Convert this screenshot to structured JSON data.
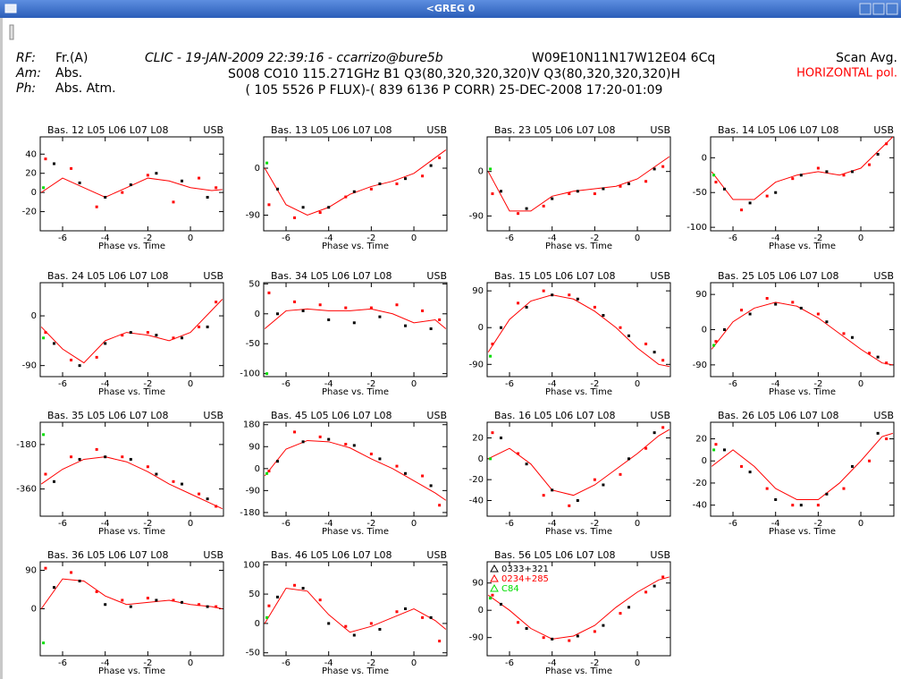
{
  "window": {
    "title": "<GREG  0"
  },
  "header": {
    "rf_label": "RF:",
    "rf_value": "Fr.(A)",
    "am_label": "Am:",
    "am_value": "Abs.",
    "ph_label": "Ph:",
    "ph_value": "Abs. Atm.",
    "line1_italic": "CLIC - 19-JAN-2009 22:39:16 - ccarrizo@bure5b",
    "line1_config": "W09E10N11N17W12E04 6Cq",
    "line2": "S008 CO10 115.271GHz B1 Q3(80,320,320,320)V Q3(80,320,320,320)H",
    "line3": "( 105 5526 P FLUX)-( 839 6136 P CORR) 25-DEC-2008 17:20-01:09",
    "scan": "Scan Avg.",
    "polarization": "HORIZONTAL pol."
  },
  "chart_data": {
    "type": "scatter",
    "xlabel": "Phase vs. Time",
    "sideband": "USB",
    "xlim": [
      -7.05,
      1.55
    ],
    "xticks": [
      -6,
      -4,
      -2,
      0
    ],
    "fit_color": "#ff0000",
    "fit_x": [
      -7,
      -6,
      -5,
      -4,
      -3,
      -2,
      -1,
      0,
      1,
      1.5
    ],
    "sources": [
      {
        "name": "0333+321",
        "color": "#000000"
      },
      {
        "name": "0234+285",
        "color": "#ff0000"
      },
      {
        "name": "C84",
        "color": "#00dd00"
      }
    ],
    "points_x": [
      [
        -6.4,
        -5.2,
        -4,
        -2.8,
        -1.6,
        -0.4,
        0.8
      ],
      [
        -6.8,
        -5.6,
        -4.4,
        -3.2,
        -2,
        -0.8,
        0.4,
        1.2
      ],
      [
        -6.9
      ]
    ],
    "panels": [
      {
        "title": "Bas. 12 L05 L06 L07 L08",
        "ylim": [
          -40,
          58
        ],
        "yticks": [
          -20,
          0,
          20,
          40
        ],
        "fit": [
          0,
          15,
          5,
          -5,
          5,
          15,
          12,
          5,
          2,
          3
        ],
        "points": [
          [
            30,
            10,
            -5,
            8,
            20,
            12,
            -5
          ],
          [
            35,
            25,
            -15,
            0,
            18,
            -10,
            15,
            5
          ],
          [
            5
          ]
        ]
      },
      {
        "title": "Bas. 13 L05 L06 L07 L08",
        "ylim": [
          -120,
          60
        ],
        "yticks": [
          -90,
          0
        ],
        "fit": [
          0,
          -70,
          -90,
          -75,
          -50,
          -35,
          -25,
          -10,
          20,
          35
        ],
        "points": [
          [
            -40,
            -75,
            -75,
            -45,
            -30,
            -20,
            5
          ],
          [
            -70,
            -95,
            -85,
            -55,
            -40,
            -30,
            -15,
            20
          ],
          [
            10
          ]
        ]
      },
      {
        "title": "Bas. 23 L05 L06 L07 L08",
        "ylim": [
          -120,
          70
        ],
        "yticks": [
          -90,
          0
        ],
        "fit": [
          0,
          -80,
          -80,
          -50,
          -40,
          -35,
          -30,
          -15,
          15,
          30
        ],
        "points": [
          [
            -40,
            -75,
            -55,
            -40,
            -35,
            -25,
            5
          ],
          [
            -45,
            -85,
            -70,
            -45,
            -45,
            -30,
            -20,
            10
          ],
          [
            5
          ]
        ]
      },
      {
        "title": "Bas. 14 L05 L06 L07 L08",
        "ylim": [
          -105,
          30
        ],
        "yticks": [
          -100,
          -50,
          0
        ],
        "fit": [
          -20,
          -60,
          -60,
          -35,
          -25,
          -20,
          -25,
          -15,
          15,
          30
        ],
        "points": [
          [
            -45,
            -65,
            -50,
            -25,
            -20,
            -20,
            5
          ],
          [
            -35,
            -75,
            -55,
            -30,
            -15,
            -25,
            -10,
            20
          ],
          [
            -25
          ]
        ]
      },
      {
        "title": "Bas. 24 L05 L06 L07 L08",
        "ylim": [
          -110,
          60
        ],
        "yticks": [
          -90,
          0
        ],
        "fit": [
          -20,
          -60,
          -85,
          -45,
          -30,
          -35,
          -45,
          -30,
          10,
          30
        ],
        "points": [
          [
            -50,
            -90,
            -50,
            -30,
            -35,
            -40,
            -20
          ],
          [
            -30,
            -80,
            -75,
            -35,
            -30,
            -40,
            -20,
            25
          ],
          [
            -40
          ]
        ]
      },
      {
        "title": "Bas. 34 L05 L06 L07 L08",
        "ylim": [
          -105,
          52
        ],
        "yticks": [
          -100,
          -50,
          0,
          50
        ],
        "fit": [
          -25,
          5,
          8,
          5,
          5,
          8,
          0,
          -15,
          -10,
          -25
        ],
        "points": [
          [
            0,
            5,
            -10,
            -15,
            -5,
            -20,
            -25
          ],
          [
            35,
            20,
            15,
            10,
            10,
            15,
            5,
            -10
          ],
          [
            -100
          ]
        ]
      },
      {
        "title": "Bas. 15 L05 L06 L07 L08",
        "ylim": [
          -120,
          110
        ],
        "yticks": [
          -90,
          0,
          90
        ],
        "fit": [
          -60,
          20,
          65,
          80,
          70,
          40,
          0,
          -50,
          -90,
          -95
        ],
        "points": [
          [
            0,
            50,
            80,
            70,
            30,
            -20,
            -60
          ],
          [
            -40,
            60,
            90,
            80,
            50,
            0,
            -40,
            -80
          ],
          [
            -70
          ]
        ]
      },
      {
        "title": "Bas. 25 L05 L06 L07 L08",
        "ylim": [
          -120,
          120
        ],
        "yticks": [
          -90,
          0,
          90
        ],
        "fit": [
          -50,
          20,
          55,
          70,
          60,
          30,
          -10,
          -50,
          -85,
          -90
        ],
        "points": [
          [
            0,
            40,
            65,
            55,
            20,
            -20,
            -70
          ],
          [
            -30,
            50,
            80,
            70,
            40,
            -10,
            -60,
            -85
          ],
          [
            -40
          ]
        ]
      },
      {
        "title": "Bas. 35 L05 L06 L07 L08",
        "ylim": [
          -470,
          -90
        ],
        "yticks": [
          -360,
          -180
        ],
        "fit": [
          -340,
          -280,
          -240,
          -230,
          -250,
          -290,
          -340,
          -380,
          -420,
          -440
        ],
        "points": [
          [
            -330,
            -240,
            -230,
            -240,
            -300,
            -340,
            -400
          ],
          [
            -300,
            -230,
            -200,
            -230,
            -270,
            -330,
            -380,
            -430
          ],
          [
            -140
          ]
        ]
      },
      {
        "title": "Bas. 45 L05 L06 L07 L08",
        "ylim": [
          -195,
          190
        ],
        "yticks": [
          -180,
          -90,
          0,
          90,
          180
        ],
        "fit": [
          -30,
          80,
          115,
          110,
          85,
          40,
          0,
          -50,
          -100,
          -130
        ],
        "points": [
          [
            30,
            110,
            120,
            95,
            40,
            -20,
            -70
          ],
          [
            -10,
            150,
            130,
            100,
            60,
            10,
            -30,
            -150
          ],
          [
            -20
          ]
        ]
      },
      {
        "title": "Bas. 16 L05 L06 L07 L08",
        "ylim": [
          -55,
          35
        ],
        "yticks": [
          -40,
          -20,
          0,
          20
        ],
        "fit": [
          0,
          10,
          -5,
          -30,
          -35,
          -25,
          -10,
          5,
          22,
          28
        ],
        "points": [
          [
            20,
            -5,
            -30,
            -40,
            -25,
            0,
            25
          ],
          [
            25,
            5,
            -35,
            -45,
            -20,
            -15,
            10,
            30
          ],
          [
            0
          ]
        ]
      },
      {
        "title": "Bas. 26 L05 L06 L07 L08",
        "ylim": [
          -50,
          35
        ],
        "yticks": [
          -40,
          -20,
          0,
          20
        ],
        "fit": [
          -5,
          10,
          -5,
          -25,
          -35,
          -35,
          -20,
          0,
          22,
          25
        ],
        "points": [
          [
            10,
            -10,
            -35,
            -40,
            -30,
            -5,
            25
          ],
          [
            15,
            -5,
            -25,
            -40,
            -40,
            -25,
            0,
            20
          ],
          [
            10
          ]
        ]
      },
      {
        "title": "Bas. 36 L05 L06 L07 L08",
        "ylim": [
          -110,
          110
        ],
        "yticks": [
          0,
          90
        ],
        "fit": [
          0,
          70,
          65,
          30,
          10,
          15,
          20,
          10,
          5,
          0
        ],
        "points": [
          [
            50,
            65,
            10,
            5,
            20,
            15,
            5
          ],
          [
            95,
            85,
            40,
            20,
            25,
            20,
            10,
            5
          ],
          [
            -80
          ]
        ]
      },
      {
        "title": "Bas. 46 L05 L06 L07 L08",
        "ylim": [
          -55,
          105
        ],
        "yticks": [
          -50,
          0,
          50,
          100
        ],
        "fit": [
          0,
          60,
          55,
          15,
          -15,
          -5,
          10,
          25,
          5,
          -10
        ],
        "points": [
          [
            45,
            60,
            0,
            -20,
            -10,
            25,
            10
          ],
          [
            30,
            65,
            40,
            -5,
            0,
            20,
            10,
            -30
          ],
          [
            10
          ]
        ]
      },
      {
        "title": "Bas. 56 L05 L06 L07 L08",
        "ylim": [
          -150,
          160
        ],
        "yticks": [
          -90,
          0,
          90
        ],
        "legend": true,
        "fit": [
          50,
          0,
          -60,
          -95,
          -85,
          -50,
          10,
          60,
          100,
          110
        ],
        "points": [
          [
            20,
            -60,
            -95,
            -85,
            -50,
            10,
            80
          ],
          [
            50,
            -40,
            -90,
            -100,
            -70,
            -10,
            60,
            110
          ],
          [
            40
          ]
        ]
      }
    ]
  }
}
